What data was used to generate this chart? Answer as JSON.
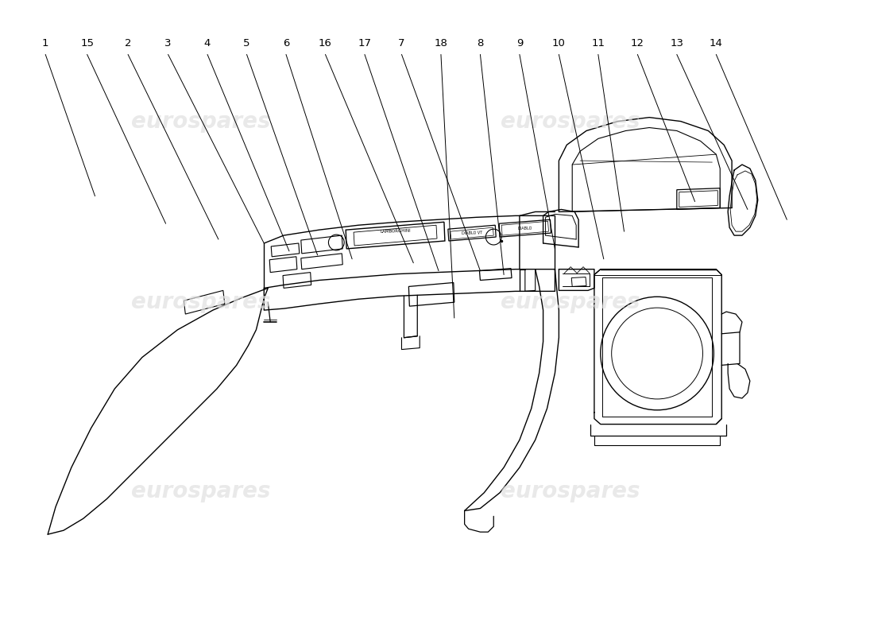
{
  "background_color": "#ffffff",
  "line_color": "#000000",
  "watermark_color": "#e0e0e0",
  "watermark_text": "eurospares",
  "label_fontsize": 9.5,
  "part_labels": [
    [
      1,
      0.52,
      7.35,
      1.15,
      5.55
    ],
    [
      15,
      1.05,
      7.35,
      2.05,
      5.2
    ],
    [
      2,
      1.57,
      7.35,
      2.72,
      5.0
    ],
    [
      3,
      2.08,
      7.35,
      3.3,
      4.95
    ],
    [
      4,
      2.58,
      7.35,
      3.62,
      4.85
    ],
    [
      5,
      3.08,
      7.35,
      3.98,
      4.8
    ],
    [
      6,
      3.58,
      7.35,
      4.42,
      4.75
    ],
    [
      16,
      4.08,
      7.35,
      5.2,
      4.7
    ],
    [
      17,
      4.58,
      7.35,
      5.52,
      4.6
    ],
    [
      7,
      5.05,
      7.35,
      6.05,
      4.6
    ],
    [
      18,
      5.55,
      7.35,
      5.72,
      4.0
    ],
    [
      8,
      6.05,
      7.35,
      6.35,
      4.55
    ],
    [
      9,
      6.55,
      7.35,
      7.0,
      4.88
    ],
    [
      10,
      7.05,
      7.35,
      7.62,
      4.75
    ],
    [
      11,
      7.55,
      7.35,
      7.88,
      5.1
    ],
    [
      12,
      8.05,
      7.35,
      8.78,
      5.48
    ],
    [
      13,
      8.55,
      7.35,
      9.45,
      5.38
    ],
    [
      14,
      9.05,
      7.35,
      9.95,
      5.25
    ]
  ]
}
